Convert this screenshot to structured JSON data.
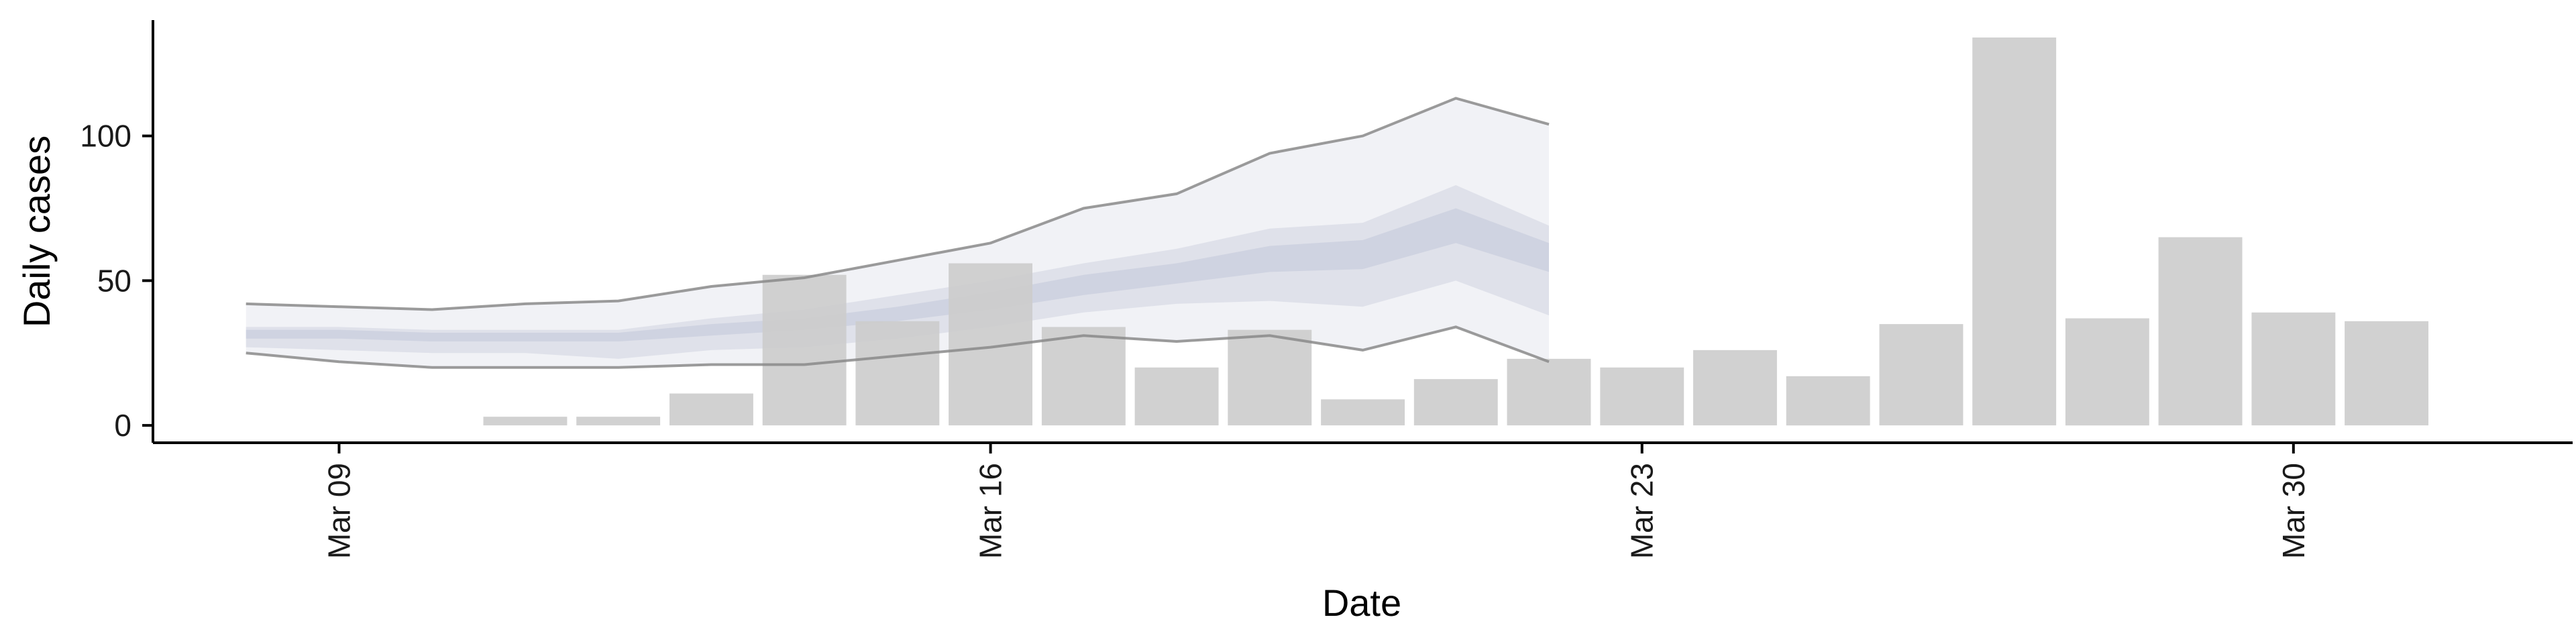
{
  "chart_data": {
    "type": "bar",
    "title": "",
    "xlabel": "Date",
    "ylabel": "Daily cases",
    "ylim": [
      -6,
      140
    ],
    "grid": false,
    "y_ticks": [
      0,
      50,
      100
    ],
    "x_ticks": [
      "Mar 09",
      "Mar 16",
      "Mar 23",
      "Mar 30"
    ],
    "x_range": [
      "2020-03-07",
      "2020-04-02"
    ],
    "bars": {
      "color": "#cccccc",
      "x": [
        "2020-03-09",
        "2020-03-10",
        "2020-03-11",
        "2020-03-12",
        "2020-03-13",
        "2020-03-14",
        "2020-03-15",
        "2020-03-16",
        "2020-03-17",
        "2020-03-18",
        "2020-03-19",
        "2020-03-20",
        "2020-03-21",
        "2020-03-22",
        "2020-03-23",
        "2020-03-24",
        "2020-03-25",
        "2020-03-26",
        "2020-03-27",
        "2020-03-28",
        "2020-03-29",
        "2020-03-30",
        "2020-03-31"
      ],
      "values": [
        0,
        0,
        3,
        3,
        11,
        52,
        36,
        56,
        34,
        20,
        33,
        9,
        16,
        23,
        20,
        26,
        17,
        35,
        134,
        37,
        65,
        39,
        36
      ]
    },
    "nowcast_bands": {
      "x": [
        "2020-03-08",
        "2020-03-09",
        "2020-03-10",
        "2020-03-11",
        "2020-03-12",
        "2020-03-13",
        "2020-03-14",
        "2020-03-15",
        "2020-03-16",
        "2020-03-17",
        "2020-03-18",
        "2020-03-19",
        "2020-03-20",
        "2020-03-21",
        "2020-03-22"
      ],
      "lower_90": [
        25,
        22,
        20,
        20,
        20,
        21,
        21,
        24,
        27,
        31,
        29,
        31,
        26,
        34,
        22
      ],
      "upper_90": [
        42,
        41,
        40,
        42,
        43,
        48,
        51,
        57,
        63,
        75,
        80,
        94,
        100,
        113,
        104
      ],
      "lower_50": [
        27,
        26,
        25,
        25,
        23,
        26,
        27,
        30,
        34,
        39,
        42,
        43,
        41,
        50,
        38
      ],
      "upper_50": [
        34,
        34,
        33,
        33,
        33,
        37,
        40,
        45,
        50,
        56,
        61,
        68,
        70,
        83,
        69
      ],
      "lower_20": [
        30,
        30,
        29,
        29,
        29,
        31,
        33,
        36,
        40,
        45,
        49,
        53,
        54,
        63,
        53
      ],
      "upper_20": [
        33,
        33,
        32,
        32,
        32,
        35,
        37,
        41,
        46,
        52,
        56,
        62,
        64,
        75,
        63
      ],
      "band_color_outer": "#eceef3",
      "band_color_mid": "#d8dbe6",
      "band_color_inner": "#c4c9da",
      "line_color": "#8a8a8a"
    }
  }
}
